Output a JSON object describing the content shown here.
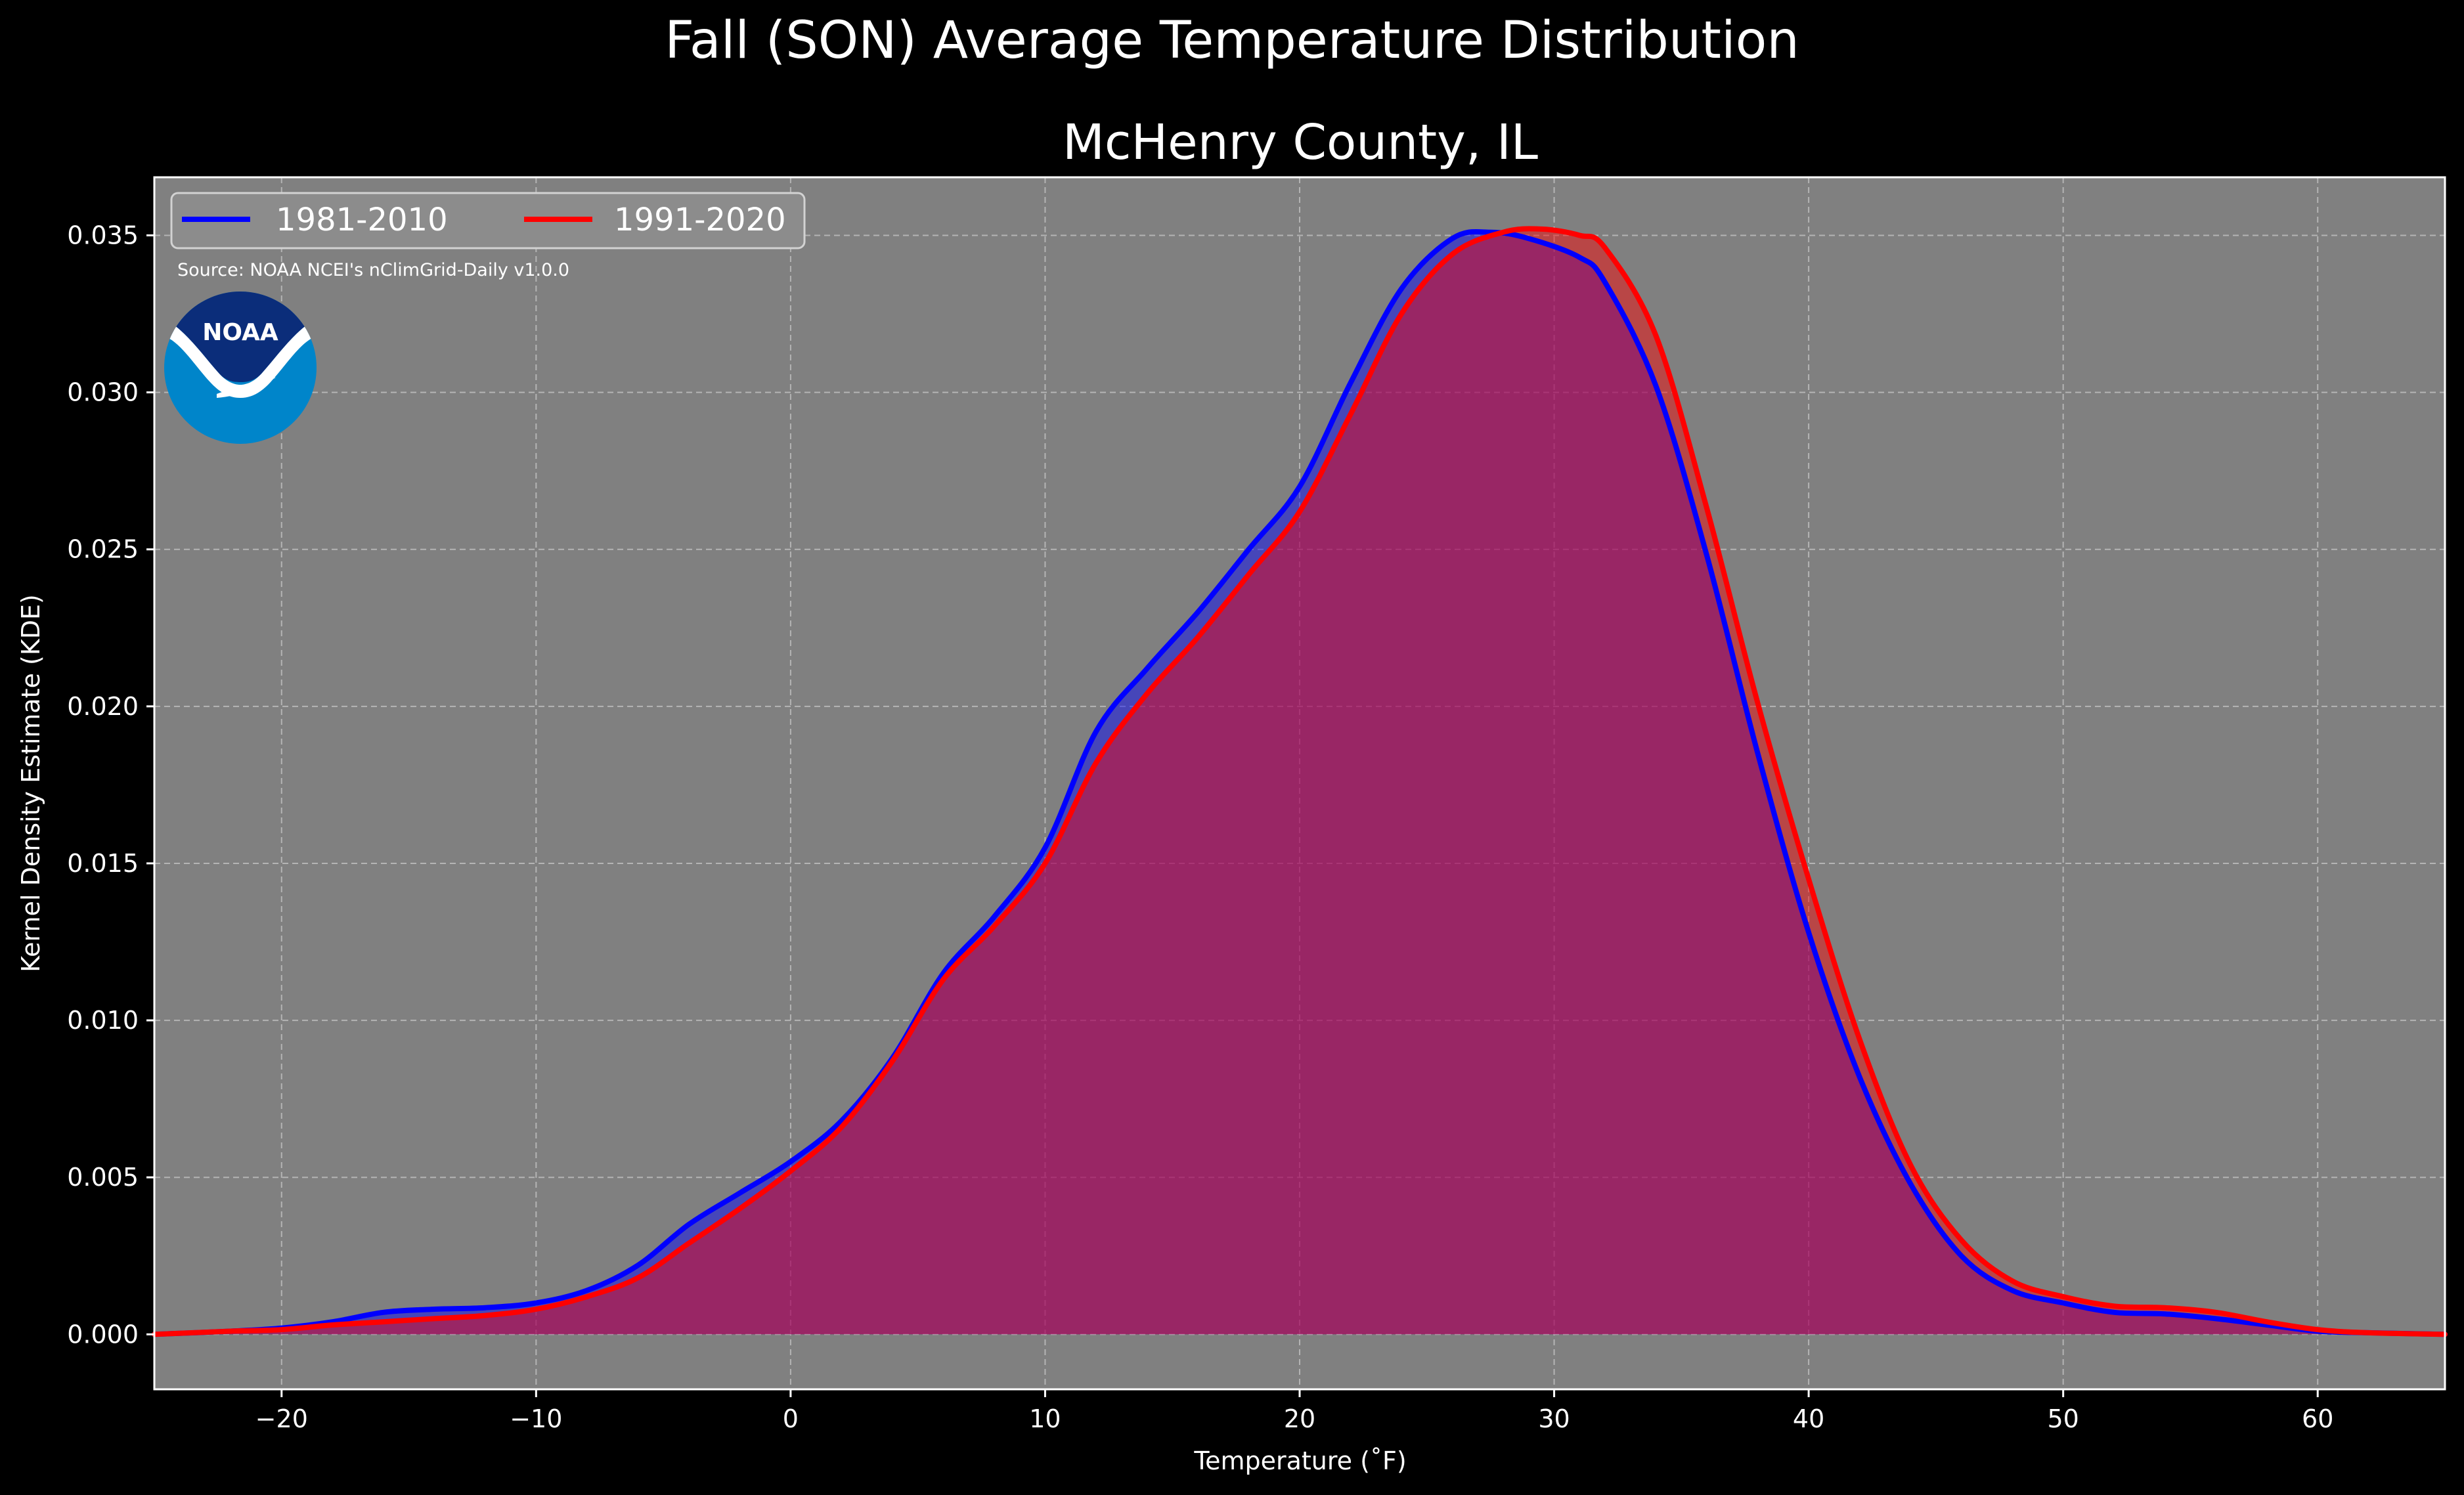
{
  "chart_data": {
    "type": "area",
    "suptitle": "Fall (SON) Average Temperature Distribution",
    "title": "McHenry County, IL",
    "xlabel": "Temperature ($^\\circ$F)",
    "xlabel_display": "Temperature (˚F)",
    "ylabel": "Kernel Density Estimate (KDE)",
    "xlim": [
      -25,
      65
    ],
    "ylim": [
      -0.00175,
      0.03685
    ],
    "grid": true,
    "legend_position": "top-left",
    "xticks": [
      -20,
      -10,
      0,
      10,
      20,
      30,
      40,
      50,
      60
    ],
    "xtick_labels": [
      "−20",
      "−10",
      "0",
      "10",
      "20",
      "30",
      "40",
      "50",
      "60"
    ],
    "yticks": [
      0,
      0.005,
      0.01,
      0.015,
      0.02,
      0.025,
      0.03,
      0.035
    ],
    "ytick_labels": [
      "0.000",
      "0.005",
      "0.010",
      "0.015",
      "0.020",
      "0.025",
      "0.030",
      "0.035"
    ],
    "annotation": "Source: NOAA NCEI's nClimGrid-Daily v1.0.0",
    "series": [
      {
        "name": "1981-2010",
        "color": "#0000ff",
        "fill_color": "#0000ff",
        "x": [
          -25,
          -22,
          -20,
          -18,
          -16,
          -14,
          -12,
          -10,
          -8,
          -6,
          -4,
          -2,
          0,
          2,
          4,
          6,
          8,
          10,
          12,
          14,
          16,
          18,
          20,
          22,
          24,
          26,
          27.5,
          29,
          31,
          32,
          34,
          36,
          38,
          40,
          42,
          44,
          46,
          48,
          50,
          52,
          54,
          56,
          58,
          60,
          62,
          65
        ],
        "y": [
          0.0,
          0.0001,
          0.0002,
          0.0004,
          0.0007,
          0.0008,
          0.00085,
          0.001,
          0.0014,
          0.0022,
          0.0035,
          0.0045,
          0.0055,
          0.0068,
          0.0088,
          0.0115,
          0.0133,
          0.0155,
          0.0192,
          0.0212,
          0.023,
          0.025,
          0.027,
          0.0303,
          0.0333,
          0.0349,
          0.0351,
          0.0349,
          0.0343,
          0.0335,
          0.0302,
          0.0248,
          0.0185,
          0.0128,
          0.0082,
          0.0048,
          0.0025,
          0.0014,
          0.001,
          0.0007,
          0.00065,
          0.0005,
          0.0003,
          0.0001,
          5e-05,
          0.0
        ]
      },
      {
        "name": "1991-2020",
        "color": "#ff0000",
        "fill_color": "#ff0000",
        "x": [
          -25,
          -22,
          -20,
          -18,
          -16,
          -14,
          -12,
          -10,
          -8,
          -6,
          -4,
          -2,
          0,
          2,
          4,
          6,
          8,
          10,
          12,
          14,
          16,
          18,
          20,
          22,
          24,
          26,
          28,
          29.5,
          31,
          32,
          34,
          36,
          38,
          40,
          42,
          44,
          46,
          48,
          50,
          52,
          54,
          56,
          58,
          60,
          62,
          65
        ],
        "y": [
          0.0,
          0.0001,
          0.00015,
          0.0003,
          0.0004,
          0.0005,
          0.0006,
          0.0008,
          0.0012,
          0.0018,
          0.0029,
          0.004,
          0.0052,
          0.0066,
          0.0087,
          0.0113,
          0.013,
          0.015,
          0.0182,
          0.0204,
          0.0222,
          0.0242,
          0.0262,
          0.0293,
          0.0325,
          0.0344,
          0.0351,
          0.0352,
          0.035,
          0.0346,
          0.0318,
          0.0263,
          0.0201,
          0.0145,
          0.0094,
          0.0054,
          0.003,
          0.0017,
          0.0012,
          0.0009,
          0.00085,
          0.0007,
          0.0004,
          0.00015,
          5e-05,
          0.0
        ]
      }
    ]
  },
  "colors": {
    "figure_background": "#000000",
    "axes_background": "#808080",
    "grid": "#b4b4b4",
    "spine": "#ffffff",
    "text": "#ffffff",
    "noaa_dark_blue": "#0b2d7a",
    "noaa_light_blue": "#0085ca"
  },
  "logo": {
    "icon": "noaa-logo",
    "text": "NOAA"
  }
}
